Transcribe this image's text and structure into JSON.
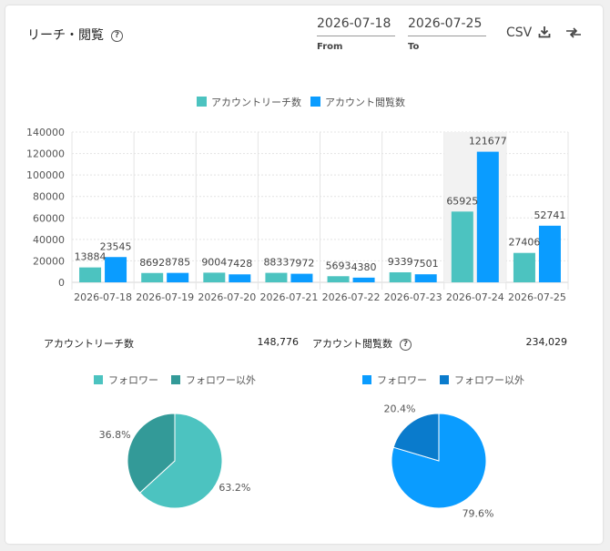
{
  "header": {
    "title": "リーチ・閲覧",
    "help_glyph": "?",
    "from_value": "2026-07-18",
    "from_label": "From",
    "to_value": "2026-07-25",
    "to_label": "To",
    "csv_label": "CSV"
  },
  "colors": {
    "reach": "#4cc3c0",
    "views": "#0a9cff",
    "follower_reach": "#4cc3c0",
    "nonfollower_reach": "#339a98",
    "follower_views": "#0a9cff",
    "nonfollower_views": "#0a7bcc"
  },
  "chart_data": [
    {
      "type": "bar",
      "categories": [
        "2026-07-18",
        "2026-07-19",
        "2026-07-20",
        "2026-07-21",
        "2026-07-22",
        "2026-07-23",
        "2026-07-24",
        "2026-07-25"
      ],
      "series": [
        {
          "name": "アカウントリーチ数",
          "values": [
            13884,
            8692,
            9004,
            8833,
            5693,
            9339,
            65925,
            27406
          ]
        },
        {
          "name": "アカウント閲覧数",
          "values": [
            23545,
            8785,
            7428,
            7972,
            4380,
            7501,
            121677,
            52741
          ]
        }
      ],
      "yticks": [
        "0",
        "20000",
        "40000",
        "60000",
        "80000",
        "100000",
        "120000",
        "140000"
      ],
      "ylim": [
        0,
        140000
      ],
      "legend": "top-center",
      "selected_category": "2026-07-24"
    },
    {
      "type": "pie",
      "summary_label": "アカウントリーチ数",
      "summary_value": "148,776",
      "labels": [
        "フォロワー",
        "フォロワー以外"
      ],
      "values": [
        63.2,
        36.8
      ],
      "value_labels": [
        "63.2%",
        "36.8%"
      ],
      "legend": "top-center"
    },
    {
      "type": "pie",
      "summary_label": "アカウント閲覧数",
      "summary_value": "234,029",
      "help_glyph": "?",
      "labels": [
        "フォロワー",
        "フォロワー以外"
      ],
      "values": [
        79.6,
        20.4
      ],
      "value_labels": [
        "79.6%",
        "20.4%"
      ],
      "legend": "top-center"
    }
  ]
}
